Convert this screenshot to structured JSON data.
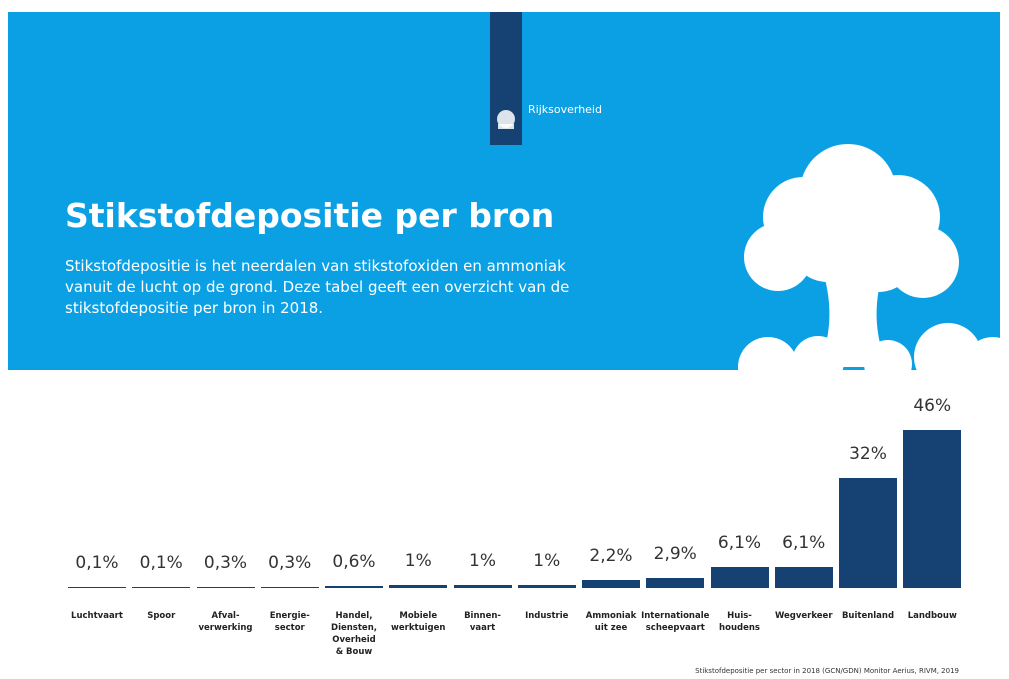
{
  "brand": "Rijksoverheid",
  "chart_data": {
    "type": "bar",
    "title": "Stikstofdepositie per bron",
    "subtitle": "Stikstofdepositie is het neerdalen van stikstofoxiden en ammoniak vanuit de lucht op de grond. Deze tabel geeft een overzicht van de stikstofdepositie per bron in 2018.",
    "categories": [
      "Luchtvaart",
      "Spoor",
      "Afval-\nverwerking",
      "Energie-\nsector",
      "Handel,\nDiensten,\nOverheid\n& Bouw",
      "Mobiele\nwerktuigen",
      "Binnen-\nvaart",
      "Industrie",
      "Ammoniak\nuit zee",
      "Internationale\nscheepvaart",
      "Huis-\nhoudens",
      "Wegverkeer",
      "Buitenland",
      "Landbouw"
    ],
    "values": [
      0.1,
      0.1,
      0.3,
      0.3,
      0.6,
      1,
      1,
      1,
      2.2,
      2.9,
      6.1,
      6.1,
      32,
      46
    ],
    "value_labels": [
      "0,1%",
      "0,1%",
      "0,3%",
      "0,3%",
      "0,6%",
      "1%",
      "1%",
      "1%",
      "2,2%",
      "2,9%",
      "6,1%",
      "6,1%",
      "32%",
      "46%"
    ],
    "color": "#154273",
    "source": "Stikstofdepositie per sector in 2018 (GCN/GDN) Monitor Aerius, RIVM, 2019"
  }
}
